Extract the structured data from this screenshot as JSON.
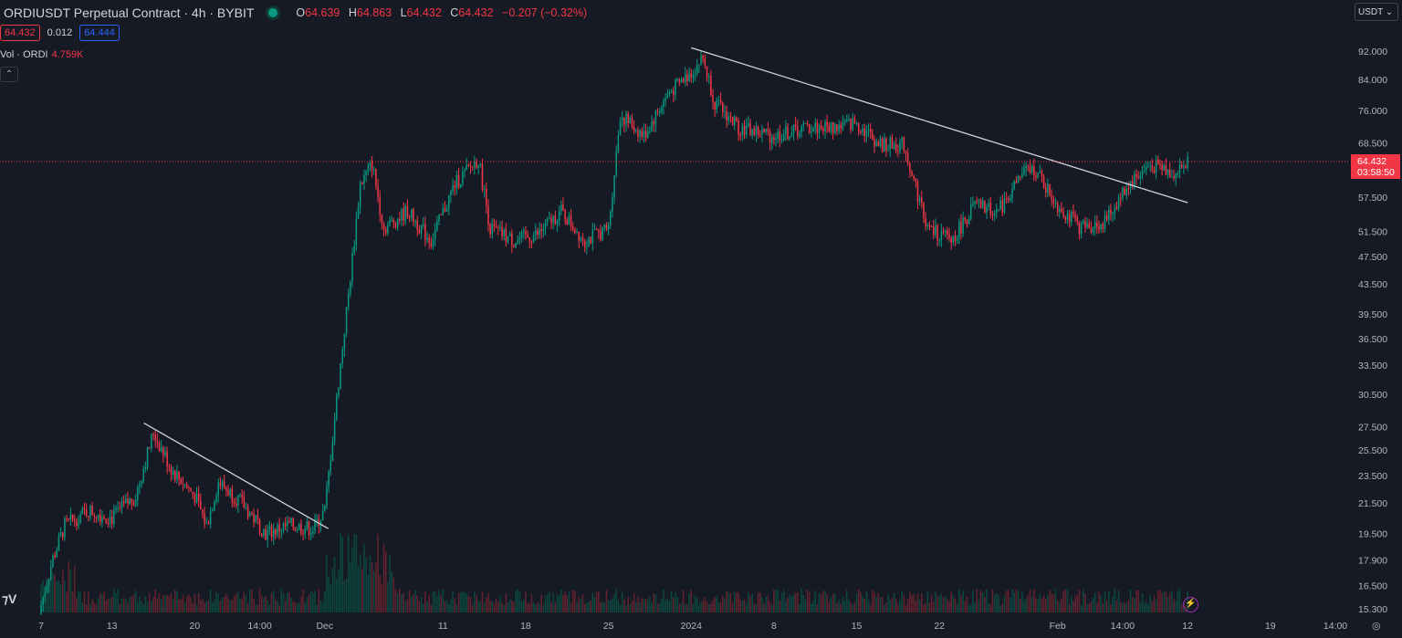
{
  "header": {
    "title": "ORDIUSDT Perpetual Contract · 4h · BYBIT",
    "o_label": "O",
    "o": "64.639",
    "h_label": "H",
    "h": "64.863",
    "l_label": "L",
    "l": "64.432",
    "c_label": "C",
    "c": "64.432",
    "change": "−0.207 (−0.32%)"
  },
  "quote": {
    "bid": "64.432",
    "spread": "0.012",
    "ask": "64.444"
  },
  "volume": {
    "label": "Vol · ORDI",
    "value": "4.759K"
  },
  "currency": "USDT ⌄",
  "logo": "TV",
  "colors": {
    "up": "#089981",
    "down": "#f23645",
    "bg": "#161a25"
  },
  "chart_data": {
    "type": "candlestick",
    "title": "ORDIUSDT Perpetual Contract · 4h · BYBIT",
    "y_scale": "log",
    "ylim": [
      15.3,
      92
    ],
    "y_ticks": [
      "92.000",
      "84.000",
      "76.000",
      "68.500",
      "57.500",
      "51.500",
      "47.500",
      "43.500",
      "39.500",
      "36.500",
      "33.500",
      "30.500",
      "27.500",
      "25.500",
      "23.500",
      "21.500",
      "19.500",
      "17.900",
      "16.500",
      "15.300"
    ],
    "y_tick_values": [
      92,
      84,
      76,
      68.5,
      57.5,
      51.5,
      47.5,
      43.5,
      39.5,
      36.5,
      33.5,
      30.5,
      27.5,
      25.5,
      23.5,
      21.5,
      19.5,
      17.9,
      16.5,
      15.3
    ],
    "x_ticks": [
      "7",
      "13",
      "20",
      "14:00",
      "Dec",
      "11",
      "18",
      "25",
      "2024",
      "8",
      "15",
      "22",
      "Feb",
      "14:00",
      "12",
      "19",
      "14:00"
    ],
    "x_tick_days": [
      0,
      6,
      13,
      18.5,
      24,
      34,
      41,
      48,
      55,
      62,
      69,
      76,
      86,
      91.5,
      97,
      104,
      109.5
    ],
    "close_anchors_day": [
      0,
      1,
      2,
      4,
      6,
      8,
      9.5,
      11,
      13,
      14,
      15,
      17,
      19,
      21,
      23,
      24,
      25,
      26,
      27,
      28,
      29,
      31,
      33,
      35,
      37,
      38,
      40,
      42,
      44,
      46,
      48,
      49,
      51,
      53,
      55,
      56,
      57,
      59,
      62,
      65,
      67,
      69,
      71,
      73,
      75,
      77,
      79,
      81,
      83,
      84,
      86,
      88,
      90,
      92,
      94,
      96,
      97
    ],
    "close_anchors": [
      15.5,
      18,
      20,
      21,
      20.5,
      22,
      27,
      24,
      22,
      20,
      23,
      21.5,
      19.5,
      20,
      19.8,
      21,
      30,
      42,
      60,
      64,
      52,
      55,
      50,
      60,
      65,
      52,
      50,
      51,
      55,
      50,
      52,
      75,
      70,
      80,
      86,
      90,
      78,
      72,
      70,
      72,
      72,
      73,
      68,
      68,
      52,
      50,
      56,
      55,
      62,
      63,
      56,
      52,
      53,
      60,
      64,
      62,
      64.432
    ],
    "last_price": "64.432",
    "countdown": "03:58:50",
    "trendlines": [
      {
        "from_day": 8.7,
        "from_price": 27.8,
        "to_day": 24.3,
        "to_price": 19.8
      },
      {
        "from_day": 55,
        "from_price": 93,
        "to_day": 97,
        "to_price": 56.5
      }
    ]
  }
}
